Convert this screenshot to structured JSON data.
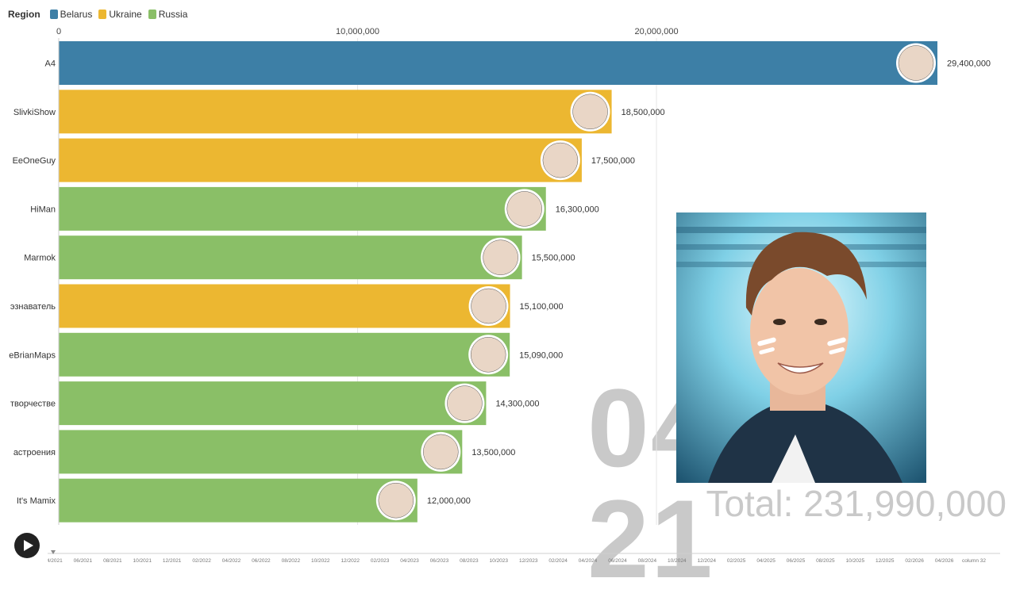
{
  "legend": {
    "title": "Region",
    "items": [
      {
        "label": "Belarus",
        "color": "#3d7fa6"
      },
      {
        "label": "Ukraine",
        "color": "#ecb731"
      },
      {
        "label": "Russia",
        "color": "#8abf67"
      }
    ]
  },
  "chart_data": {
    "type": "bar",
    "orientation": "horizontal",
    "title": "",
    "xlim": [
      0,
      29400000
    ],
    "x_ticks": [
      {
        "value": 0,
        "label": "0"
      },
      {
        "value": 10000000,
        "label": "10,000,000"
      },
      {
        "value": 20000000,
        "label": "20,000,000"
      }
    ],
    "categories": [
      "A4",
      "SlivkiShow",
      "EeOneGuy",
      "HiMan",
      "Marmok",
      "эзнаватель",
      "eBrianMaps",
      "творчестве",
      "астроения",
      "It's Mamix"
    ],
    "values": [
      29400000,
      18500000,
      17500000,
      16300000,
      15500000,
      15100000,
      15090000,
      14300000,
      13500000,
      12000000
    ],
    "value_labels": [
      "29,400,000",
      "18,500,000",
      "17,500,000",
      "16,300,000",
      "15,500,000",
      "15,100,000",
      "15,090,000",
      "14,300,000",
      "13,500,000",
      "12,000,000"
    ],
    "regions": [
      "Belarus",
      "Ukraine",
      "Ukraine",
      "Russia",
      "Russia",
      "Ukraine",
      "Russia",
      "Russia",
      "Russia",
      "Russia"
    ],
    "grid": true,
    "legend": "top-left"
  },
  "date_label": "04",
  "date_label_right": "21",
  "total_label": "Total: 231,990,000",
  "timeline": {
    "labels": [
      "04/2021",
      "06/2021",
      "08/2021",
      "10/2021",
      "12/2021",
      "02/2022",
      "04/2022",
      "06/2022",
      "08/2022",
      "10/2022",
      "12/2022",
      "02/2023",
      "04/2023",
      "06/2023",
      "08/2023",
      "10/2023",
      "12/2023",
      "02/2024",
      "04/2024",
      "06/2024",
      "08/2024",
      "10/2024",
      "12/2024",
      "02/2025",
      "04/2025",
      "06/2025",
      "08/2025",
      "10/2025",
      "12/2025",
      "02/2026",
      "04/2026",
      "column 32"
    ]
  },
  "icons": {
    "play": "play-icon"
  }
}
